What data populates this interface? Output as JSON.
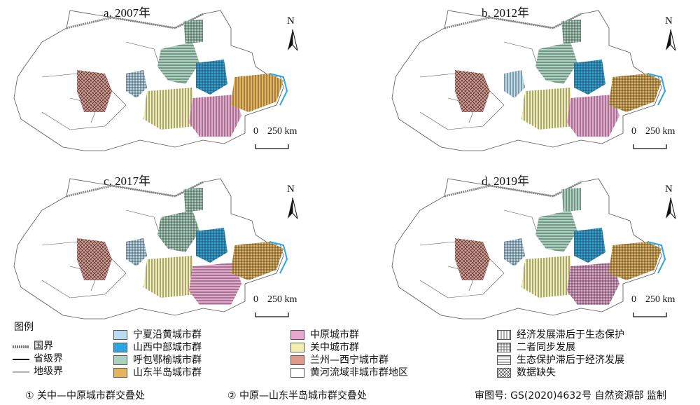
{
  "panels": [
    {
      "id": "a",
      "title": "a. 2007年"
    },
    {
      "id": "b",
      "title": "b. 2012年"
    },
    {
      "id": "c",
      "title": "c. 2017年"
    },
    {
      "id": "d",
      "title": "d. 2019年"
    }
  ],
  "north_label": "N",
  "scale": {
    "zero": "0",
    "label": "250 km"
  },
  "legend": {
    "title": "图例",
    "lines": [
      {
        "label": "国界"
      },
      {
        "label": "省级界"
      },
      {
        "label": "地级界"
      }
    ],
    "regions": [
      {
        "label": "宁夏沿黄城市群",
        "color": "#b9dcee"
      },
      {
        "label": "山西中部城市群",
        "color": "#2aa7e0"
      },
      {
        "label": "呼包鄂榆城市群",
        "color": "#a9d3be"
      },
      {
        "label": "山东半岛城市群",
        "color": "#e7b45a"
      },
      {
        "label": "中原城市群",
        "color": "#e9a6cf"
      },
      {
        "label": "关中城市群",
        "color": "#f3f0b0"
      },
      {
        "label": "兰州—西宁城市群",
        "color": "#df9a8e"
      },
      {
        "label": "黄河流域非城市群地区",
        "color": "#ffffff"
      }
    ],
    "patterns": [
      {
        "label": "经济发展滞后于生态保护"
      },
      {
        "label": "二者同步发展"
      },
      {
        "label": "生态保护滞后于经济发展"
      },
      {
        "label": "数据缺失"
      }
    ]
  },
  "notes": {
    "n1": "① 关中—中原城市群交叠处",
    "n2": "② 中原—山东半岛城市群交叠处",
    "review": "审图号: GS(2020)4632号  自然资源部  监制"
  }
}
